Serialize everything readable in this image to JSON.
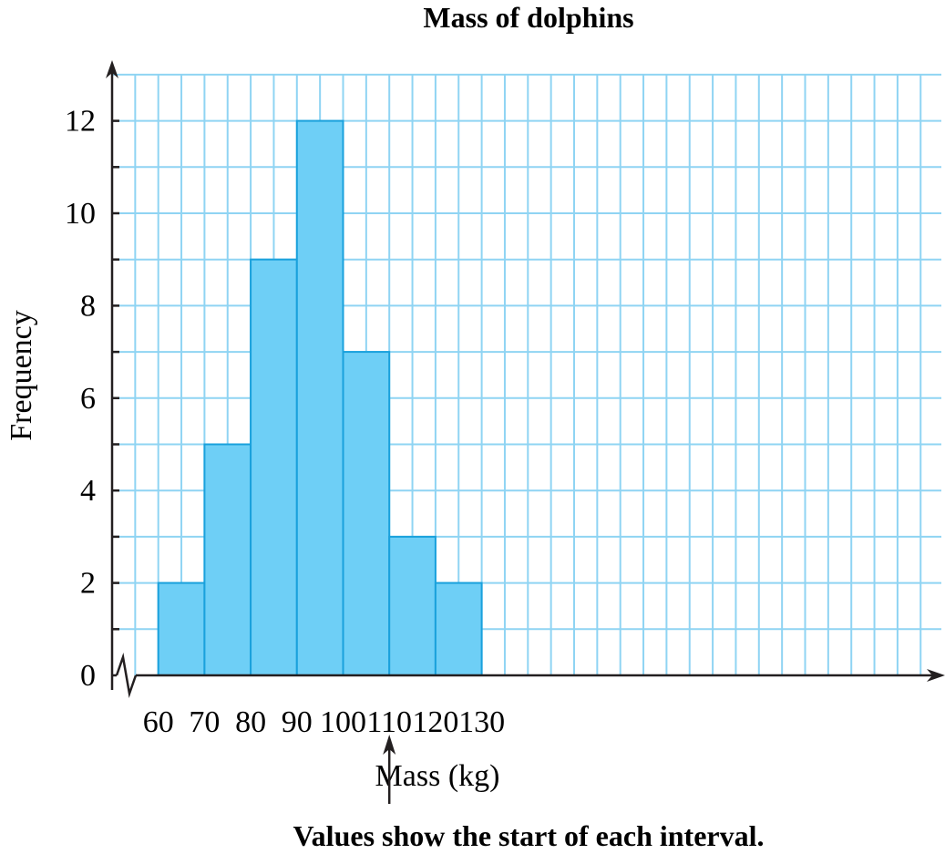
{
  "chart_data": {
    "type": "bar",
    "title": "Mass of dolphins",
    "xlabel": "Mass (kg)",
    "ylabel": "Frequency",
    "x_tick_labels": [
      "60",
      "70",
      "80",
      "90",
      "100",
      "110",
      "120",
      "130"
    ],
    "y_tick_labels": [
      "0",
      "2",
      "4",
      "6",
      "8",
      "10",
      "12"
    ],
    "bins": [
      {
        "start": 60,
        "end": 70,
        "frequency": 2
      },
      {
        "start": 70,
        "end": 80,
        "frequency": 5
      },
      {
        "start": 80,
        "end": 90,
        "frequency": 9
      },
      {
        "start": 90,
        "end": 100,
        "frequency": 12
      },
      {
        "start": 100,
        "end": 110,
        "frequency": 7
      },
      {
        "start": 110,
        "end": 120,
        "frequency": 3
      },
      {
        "start": 120,
        "end": 130,
        "frequency": 2
      }
    ],
    "ylim": [
      0,
      13
    ],
    "xlim": [
      50,
      140
    ],
    "grid": true,
    "axis_break": true,
    "annotation": "Values show the start of each interval.",
    "annotation_target": 110
  },
  "colors": {
    "bar_fill": "#6ecff6",
    "bar_edge": "#1aa1dc",
    "grid": "#8fd4f3",
    "axis": "#231f20"
  }
}
